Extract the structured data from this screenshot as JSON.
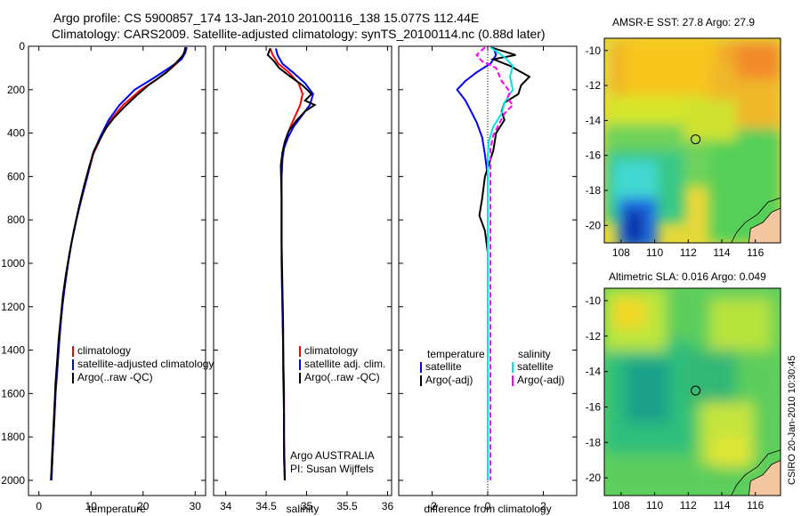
{
  "header": {
    "line1": "Argo profile: CS 5900857_174 13-Jan-2010 20100116_138 15.077S 112.44E",
    "line2": "Climatology: CARS2009. Satellite-adjusted climatology: synTS_20100114.nc (0.88d later)"
  },
  "footer": {
    "credit": "CSIRO 20-Jan-2010 10:30:45"
  },
  "colors": {
    "clim": "#ff0000",
    "sat": "#0000ff",
    "argo": "#000000",
    "sat_diff": "#00e5e5",
    "argo_diff": "#ff00ff"
  },
  "chart_data": [
    {
      "type": "line",
      "id": "temperature",
      "xlabel": "temperature",
      "xlim": [
        -2,
        32
      ],
      "ylim": [
        2070,
        0
      ],
      "xticks": [
        0,
        10,
        20,
        30
      ],
      "yticks": [
        0,
        200,
        400,
        600,
        800,
        1000,
        1200,
        1400,
        1600,
        1800,
        2000
      ],
      "legend": [
        "climatology",
        "satellite-adjusted climatology",
        "Argo(..raw -QC)"
      ],
      "series": [
        {
          "name": "climatology",
          "color": "clim",
          "points": [
            [
              28.2,
              5
            ],
            [
              27.9,
              30
            ],
            [
              27.3,
              60
            ],
            [
              25.5,
              100
            ],
            [
              22.8,
              150
            ],
            [
              19.6,
              200
            ],
            [
              16.2,
              270
            ],
            [
              13.8,
              340
            ],
            [
              11.9,
              420
            ],
            [
              10.4,
              500
            ],
            [
              9.3,
              600
            ],
            [
              8.2,
              700
            ],
            [
              7.2,
              800
            ],
            [
              6.3,
              900
            ],
            [
              5.6,
              1000
            ],
            [
              5.0,
              1100
            ],
            [
              4.5,
              1200
            ],
            [
              4.1,
              1300
            ],
            [
              3.8,
              1400
            ],
            [
              3.5,
              1500
            ],
            [
              3.2,
              1600
            ],
            [
              3.0,
              1700
            ],
            [
              2.8,
              1800
            ],
            [
              2.6,
              1900
            ],
            [
              2.4,
              2000
            ]
          ]
        },
        {
          "name": "satellite-adjusted climatology",
          "color": "sat",
          "points": [
            [
              28.4,
              5
            ],
            [
              28.1,
              30
            ],
            [
              27.4,
              60
            ],
            [
              25.0,
              100
            ],
            [
              21.8,
              150
            ],
            [
              18.4,
              200
            ],
            [
              15.5,
              270
            ],
            [
              13.4,
              340
            ],
            [
              11.7,
              420
            ],
            [
              10.3,
              500
            ],
            [
              9.3,
              600
            ],
            [
              8.2,
              700
            ],
            [
              7.2,
              800
            ],
            [
              6.3,
              900
            ],
            [
              5.6,
              1000
            ],
            [
              5.0,
              1100
            ],
            [
              4.5,
              1200
            ],
            [
              4.1,
              1300
            ],
            [
              3.8,
              1400
            ],
            [
              3.5,
              1500
            ],
            [
              3.2,
              1600
            ],
            [
              3.0,
              1700
            ],
            [
              2.8,
              1800
            ],
            [
              2.6,
              1900
            ],
            [
              2.4,
              2000
            ]
          ]
        },
        {
          "name": "Argo(..raw -QC)",
          "color": "argo",
          "points": [
            [
              28.1,
              5
            ],
            [
              28.0,
              20
            ],
            [
              27.7,
              40
            ],
            [
              26.2,
              80
            ],
            [
              24.5,
              120
            ],
            [
              21.0,
              180
            ],
            [
              18.6,
              230
            ],
            [
              16.4,
              280
            ],
            [
              14.4,
              330
            ],
            [
              12.8,
              380
            ],
            [
              11.7,
              430
            ],
            [
              10.6,
              480
            ],
            [
              9.6,
              560
            ],
            [
              8.6,
              650
            ],
            [
              7.6,
              750
            ],
            [
              6.7,
              850
            ],
            [
              5.9,
              950
            ],
            [
              5.2,
              1050
            ],
            [
              4.6,
              1150
            ],
            [
              4.2,
              1250
            ],
            [
              3.8,
              1350
            ],
            [
              3.5,
              1450
            ],
            [
              3.2,
              1550
            ],
            [
              3.0,
              1650
            ],
            [
              2.8,
              1750
            ],
            [
              2.6,
              1850
            ],
            [
              2.4,
              1950
            ],
            [
              2.3,
              2000
            ]
          ]
        }
      ]
    },
    {
      "type": "line",
      "id": "salinity",
      "xlabel": "salinity",
      "xlim": [
        33.85,
        36.05
      ],
      "ylim": [
        2070,
        0
      ],
      "xticks": [
        34,
        34.5,
        35,
        35.5,
        36
      ],
      "yticks": [
        0,
        200,
        400,
        600,
        800,
        1000,
        1200,
        1400,
        1600,
        1800,
        2000
      ],
      "legend": [
        "climatology",
        "satellite adj. clim.",
        "Argo(..raw -QC)"
      ],
      "series": [
        {
          "name": "climatology",
          "color": "clim",
          "points": [
            [
              34.55,
              10
            ],
            [
              34.58,
              40
            ],
            [
              34.65,
              80
            ],
            [
              34.78,
              120
            ],
            [
              34.9,
              170
            ],
            [
              34.95,
              220
            ],
            [
              34.92,
              270
            ],
            [
              34.86,
              320
            ],
            [
              34.8,
              370
            ],
            [
              34.75,
              420
            ],
            [
              34.72,
              470
            ],
            [
              34.7,
              520
            ],
            [
              34.69,
              600
            ],
            [
              34.69,
              800
            ],
            [
              34.69,
              1000
            ],
            [
              34.7,
              1200
            ],
            [
              34.71,
              1400
            ],
            [
              34.72,
              1600
            ],
            [
              34.72,
              1800
            ],
            [
              34.73,
              2000
            ]
          ]
        },
        {
          "name": "satellite adj. clim.",
          "color": "sat",
          "points": [
            [
              34.62,
              10
            ],
            [
              34.64,
              40
            ],
            [
              34.7,
              80
            ],
            [
              34.83,
              120
            ],
            [
              34.98,
              170
            ],
            [
              35.08,
              220
            ],
            [
              35.04,
              270
            ],
            [
              34.94,
              320
            ],
            [
              34.84,
              370
            ],
            [
              34.77,
              420
            ],
            [
              34.72,
              470
            ],
            [
              34.7,
              520
            ],
            [
              34.69,
              600
            ],
            [
              34.69,
              800
            ],
            [
              34.69,
              1000
            ],
            [
              34.7,
              1200
            ],
            [
              34.71,
              1400
            ],
            [
              34.72,
              1600
            ],
            [
              34.72,
              1800
            ],
            [
              34.73,
              2000
            ]
          ]
        },
        {
          "name": "Argo(..raw -QC)",
          "color": "argo",
          "points": [
            [
              34.55,
              10
            ],
            [
              34.52,
              40
            ],
            [
              34.6,
              70
            ],
            [
              34.66,
              100
            ],
            [
              34.8,
              140
            ],
            [
              34.95,
              180
            ],
            [
              35.06,
              220
            ],
            [
              34.98,
              250
            ],
            [
              35.1,
              270
            ],
            [
              34.98,
              300
            ],
            [
              34.88,
              340
            ],
            [
              34.78,
              390
            ],
            [
              34.73,
              440
            ],
            [
              34.7,
              490
            ],
            [
              34.68,
              550
            ],
            [
              34.69,
              700
            ],
            [
              34.69,
              900
            ],
            [
              34.7,
              1100
            ],
            [
              34.71,
              1300
            ],
            [
              34.71,
              1500
            ],
            [
              34.72,
              1700
            ],
            [
              34.72,
              1900
            ],
            [
              34.73,
              2000
            ]
          ]
        }
      ],
      "annotation": [
        "Argo AUSTRALIA",
        "PI: Susan Wijffels"
      ]
    },
    {
      "type": "line",
      "id": "difference",
      "xlabel": "difference from climatology",
      "xlim": [
        -3.2,
        3.2
      ],
      "ylim": [
        2070,
        0
      ],
      "xticks": [
        -2,
        0,
        2
      ],
      "yticks": [
        0,
        200,
        400,
        600,
        800,
        1000,
        1200,
        1400,
        1600,
        1800,
        2000
      ],
      "legend_left": {
        "title": "temperature",
        "items": [
          "satellite",
          "Argo(-adj)"
        ]
      },
      "legend_right": {
        "title": "salinity",
        "items": [
          "satellite",
          "Argo(-adj)"
        ]
      },
      "series": [
        {
          "name": "temperature satellite",
          "color": "sat",
          "points": [
            [
              0.2,
              5
            ],
            [
              0.3,
              40
            ],
            [
              0.1,
              80
            ],
            [
              -0.4,
              120
            ],
            [
              -0.8,
              160
            ],
            [
              -1.1,
              200
            ],
            [
              -0.8,
              250
            ],
            [
              -0.6,
              300
            ],
            [
              -0.4,
              350
            ],
            [
              -0.2,
              420
            ],
            [
              -0.1,
              500
            ],
            [
              0,
              600
            ],
            [
              0,
              800
            ],
            [
              0,
              1000
            ],
            [
              0,
              1200
            ],
            [
              0,
              1400
            ],
            [
              0,
              1600
            ],
            [
              0,
              1800
            ],
            [
              0,
              2000
            ]
          ]
        },
        {
          "name": "temperature Argo(-adj)",
          "color": "argo",
          "points": [
            [
              0.1,
              5
            ],
            [
              1.0,
              40
            ],
            [
              0.2,
              60
            ],
            [
              0.8,
              90
            ],
            [
              1.5,
              140
            ],
            [
              1.2,
              180
            ],
            [
              1.1,
              220
            ],
            [
              0.6,
              260
            ],
            [
              0.5,
              300
            ],
            [
              0.6,
              340
            ],
            [
              0.3,
              400
            ],
            [
              0.2,
              480
            ],
            [
              -0.1,
              600
            ],
            [
              -0.2,
              700
            ],
            [
              -0.3,
              780
            ],
            [
              -0.1,
              850
            ],
            [
              0,
              950
            ],
            [
              0,
              1200
            ],
            [
              0,
              1600
            ],
            [
              0,
              2000
            ]
          ]
        },
        {
          "name": "salinity satellite",
          "color": "sat_diff",
          "points": [
            [
              0.1,
              5
            ],
            [
              0.6,
              50
            ],
            [
              0.9,
              90
            ],
            [
              0.8,
              140
            ],
            [
              0.9,
              200
            ],
            [
              0.6,
              260
            ],
            [
              0.5,
              310
            ],
            [
              0.2,
              370
            ],
            [
              0.05,
              430
            ],
            [
              0,
              500
            ],
            [
              0,
              700
            ],
            [
              0,
              1000
            ],
            [
              0,
              1400
            ],
            [
              0,
              1800
            ],
            [
              0,
              2000
            ]
          ]
        },
        {
          "name": "salinity Argo(-adj)",
          "color": "argo_diff",
          "points": [
            [
              -0.1,
              5
            ],
            [
              -0.4,
              40
            ],
            [
              -0.2,
              70
            ],
            [
              0.3,
              100
            ],
            [
              0.5,
              160
            ],
            [
              0.8,
              210
            ],
            [
              0.7,
              240
            ],
            [
              0.9,
              270
            ],
            [
              0.6,
              310
            ],
            [
              0.4,
              360
            ],
            [
              0.2,
              410
            ],
            [
              0.1,
              470
            ],
            [
              0.1,
              600
            ],
            [
              0.1,
              800
            ],
            [
              0.1,
              1000
            ],
            [
              0.1,
              1200
            ],
            [
              0.1,
              1400
            ],
            [
              0.1,
              1600
            ],
            [
              0.1,
              1800
            ],
            [
              0.1,
              2000
            ]
          ]
        }
      ]
    },
    {
      "type": "heatmap",
      "id": "sst",
      "title": "AMSR-E SST: 27.8 Argo: 27.9",
      "xlim": [
        107,
        117.5
      ],
      "ylim": [
        -21.0,
        -9.3
      ],
      "xticks": [
        108,
        110,
        112,
        114,
        116
      ],
      "yticks": [
        -10,
        -12,
        -14,
        -16,
        -18,
        -20
      ],
      "marker": {
        "lon": 112.44,
        "lat": -15.077
      }
    },
    {
      "type": "heatmap",
      "id": "sla",
      "title": "Altimetric SLA: 0.016 Argo: 0.049",
      "xlim": [
        107,
        117.5
      ],
      "ylim": [
        -21.0,
        -9.3
      ],
      "xticks": [
        108,
        110,
        112,
        114,
        116
      ],
      "yticks": [
        -10,
        -12,
        -14,
        -16,
        -18,
        -20
      ],
      "marker": {
        "lon": 112.44,
        "lat": -15.077
      }
    }
  ]
}
